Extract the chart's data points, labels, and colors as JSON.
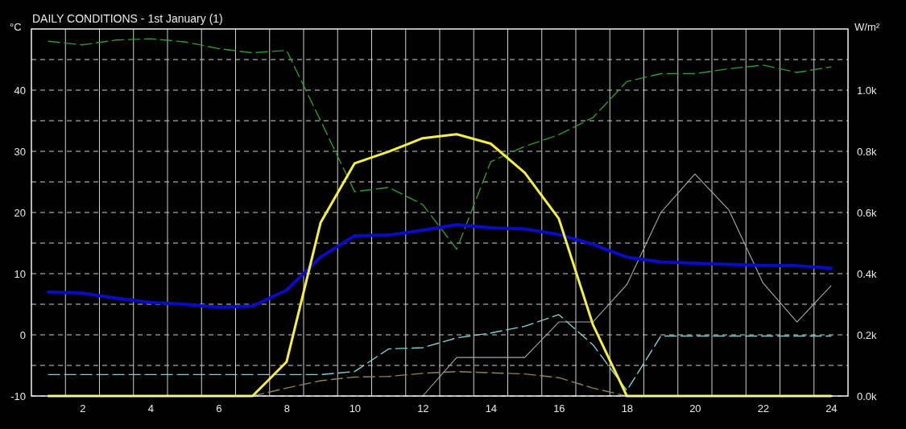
{
  "chart_data": {
    "type": "line",
    "title": "DAILY CONDITIONS - 1st January (1)",
    "ylabel": "°C",
    "y2label": "W/m²",
    "x": [
      1,
      2,
      3,
      4,
      5,
      6,
      7,
      8,
      9,
      10,
      11,
      12,
      13,
      14,
      15,
      16,
      17,
      18,
      19,
      20,
      21,
      22,
      23,
      24
    ],
    "xlim": [
      0.5,
      24.5
    ],
    "xticks": [
      {
        "value": 1.5,
        "label": null
      },
      2,
      {
        "value": 2.5,
        "label": null
      },
      {
        "value": 3.5,
        "label": null
      },
      4,
      {
        "value": 4.5,
        "label": null
      },
      {
        "value": 5.5,
        "label": null
      },
      6,
      {
        "value": 6.5,
        "label": null
      },
      {
        "value": 7.5,
        "label": null
      },
      8,
      {
        "value": 8.5,
        "label": null
      },
      {
        "value": 9.5,
        "label": null
      },
      10,
      {
        "value": 10.5,
        "label": null
      },
      {
        "value": 11.5,
        "label": null
      },
      12,
      {
        "value": 12.5,
        "label": null
      },
      {
        "value": 13.5,
        "label": null
      },
      14,
      {
        "value": 14.5,
        "label": null
      },
      {
        "value": 15.5,
        "label": null
      },
      16,
      {
        "value": 16.5,
        "label": null
      },
      {
        "value": 17.5,
        "label": null
      },
      18,
      {
        "value": 18.5,
        "label": null
      },
      {
        "value": 19.5,
        "label": null
      },
      20,
      {
        "value": 20.5,
        "label": null
      },
      {
        "value": 21.5,
        "label": null
      },
      22,
      {
        "value": 22.5,
        "label": null
      },
      {
        "value": 23.5,
        "label": null
      },
      24
    ],
    "ylim": [
      -10,
      50
    ],
    "yticks": [
      -10,
      {
        "value": -5,
        "label": null
      },
      0,
      {
        "value": 5,
        "label": null
      },
      10,
      {
        "value": 15,
        "label": null
      },
      20,
      {
        "value": 25,
        "label": null
      },
      30,
      {
        "value": 35,
        "label": null
      },
      40,
      {
        "value": 45,
        "label": null
      }
    ],
    "y2lim": [
      0,
      1200
    ],
    "y2ticks": [
      {
        "value": 0,
        "label": "0.0k"
      },
      {
        "value": 200,
        "label": "0.2k"
      },
      {
        "value": 400,
        "label": "0.4k"
      },
      {
        "value": 600,
        "label": "0.6k"
      },
      {
        "value": 800,
        "label": "0.8k"
      },
      {
        "value": 1000,
        "label": "1.0k"
      }
    ],
    "grid": true,
    "series": [
      {
        "color": "#2e9a2e",
        "line_style": "dashed",
        "values": [
          48,
          47.4,
          48.2,
          48.4,
          47.9,
          46.8,
          46.1,
          46.5,
          35,
          23.4,
          24.1,
          21.3,
          14,
          28.3,
          30.8,
          32.7,
          35.5,
          41.4,
          42.7,
          42.7,
          43.5,
          44.1,
          42.9,
          43.8
        ]
      },
      {
        "color": "#7fd0d0",
        "line_style": "dashed",
        "values": [
          -6.5,
          -6.5,
          -6.5,
          -6.5,
          -6.5,
          -6.5,
          -6.5,
          -6.5,
          -6.5,
          -6,
          -2.3,
          -2.1,
          -0.5,
          0.3,
          1.4,
          3.3,
          -1.6,
          -9.1,
          -0.2,
          -0.2,
          -0.2,
          -0.2,
          -0.2,
          -0.2
        ]
      },
      {
        "color": "#8f8450",
        "line_style": "dashed",
        "values": [
          null,
          null,
          null,
          null,
          null,
          null,
          -10,
          -8.7,
          -7.5,
          -6.9,
          -6.8,
          -6.3,
          -6,
          -6.2,
          -6.4,
          -7,
          -8.7,
          -10,
          null,
          null,
          null,
          null,
          null,
          null
        ]
      },
      {
        "color": "#a8a8a8",
        "line_style": "solid",
        "values": [
          null,
          null,
          null,
          null,
          null,
          null,
          null,
          null,
          null,
          null,
          null,
          -10,
          -3.7,
          -3.7,
          -3.7,
          2.1,
          2.1,
          8.2,
          20,
          26.3,
          20.4,
          8.5,
          2.1,
          8
        ]
      },
      {
        "color": "#0a0ac8",
        "line_style": "solid",
        "values": [
          7,
          6.8,
          6,
          5.3,
          5,
          4.5,
          4.7,
          7.3,
          12.7,
          16.2,
          16.3,
          17.1,
          18,
          17.5,
          17.3,
          16.4,
          14.8,
          12.7,
          11.9,
          11.7,
          11.5,
          11.3,
          11.3,
          10.9
        ]
      },
      {
        "color": "#f5f03c",
        "line_style": "solid",
        "axis": "y2",
        "values": [
          0,
          0,
          0,
          0,
          0,
          0,
          0,
          112,
          567,
          761,
          799,
          843,
          856,
          825,
          730,
          580,
          234,
          0,
          0,
          0,
          0,
          0,
          0,
          0
        ]
      }
    ]
  }
}
